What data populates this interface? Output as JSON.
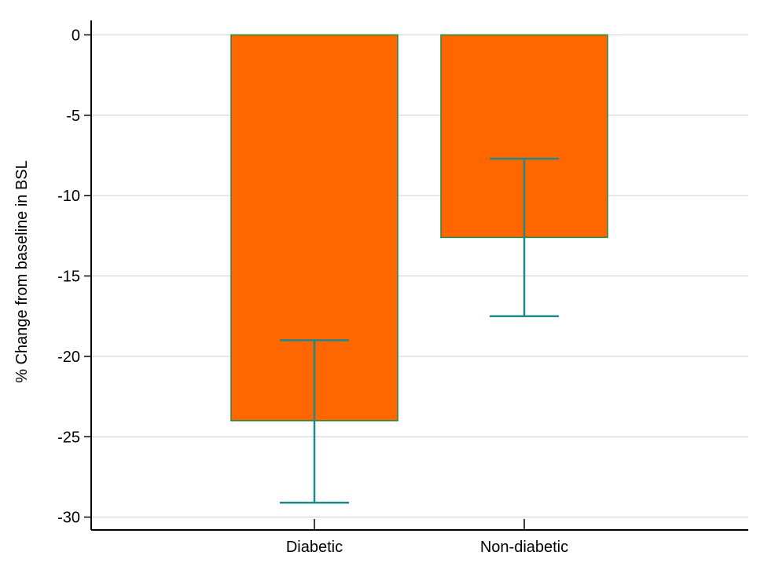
{
  "chart_data": {
    "type": "bar",
    "title": "",
    "xlabel": "",
    "ylabel": "% Change from baseline in BSL",
    "categories": [
      "Diabetic",
      "Non-diabetic"
    ],
    "values": [
      -24,
      -12.6
    ],
    "error_low": [
      -29.1,
      -17.5
    ],
    "error_high": [
      -19,
      -7.7
    ],
    "ylim": [
      -30.8,
      0.9
    ],
    "yticks": [
      0,
      -5,
      -10,
      -15,
      -20,
      -25,
      -30
    ],
    "ytick_labels": [
      "0",
      "-5",
      "-10",
      "-15",
      "-20",
      "-25",
      "-30"
    ],
    "grid": true,
    "colors": {
      "bar_fill": "#ff6600",
      "bar_edge": "#1a8c3a",
      "error_bar": "#1f8a8a",
      "grid": "#d0d0d0",
      "axis": "#000000"
    }
  }
}
